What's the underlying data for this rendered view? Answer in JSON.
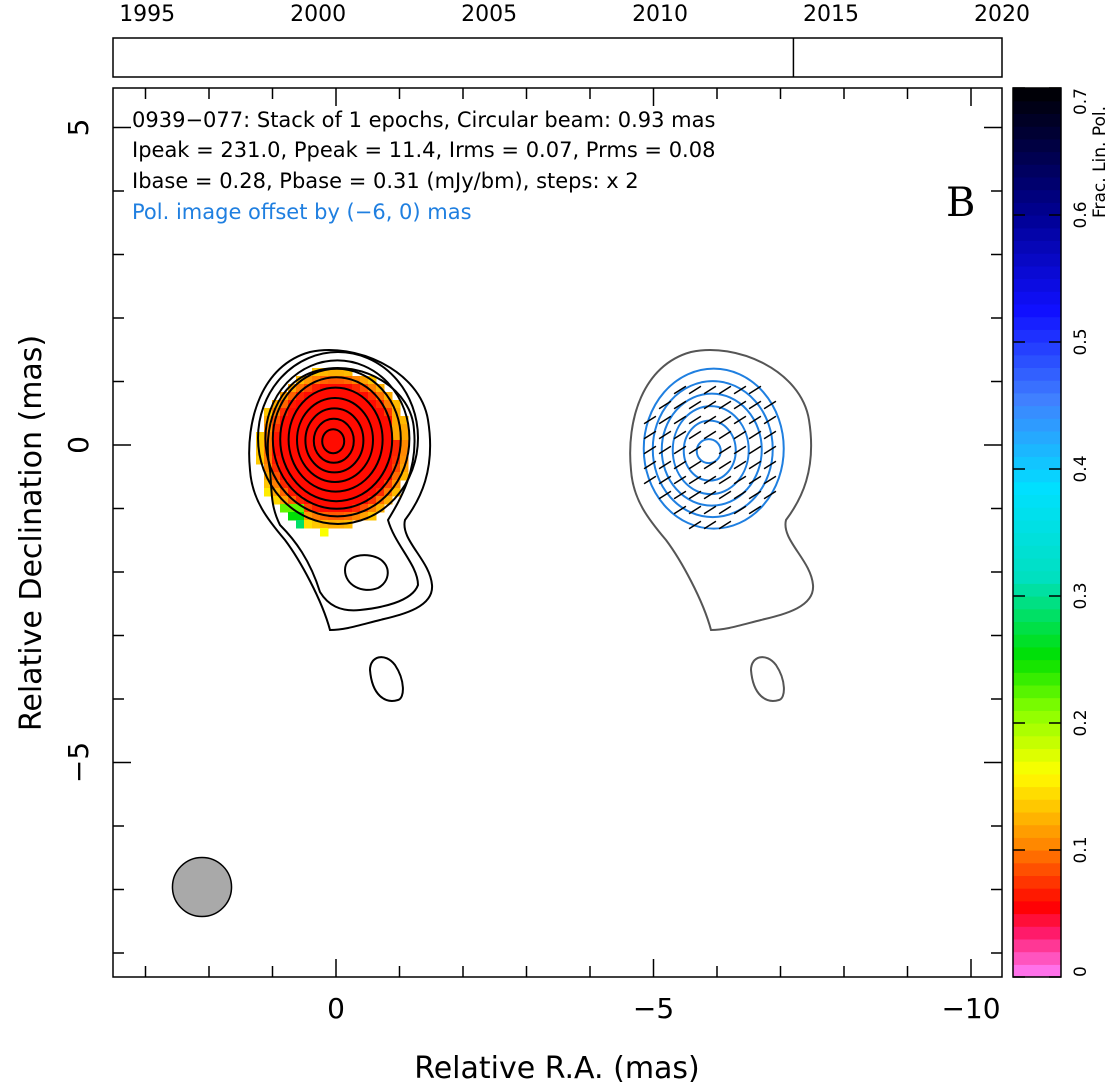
{
  "chart_data": {
    "type": "contour",
    "timeline": {
      "ticks": [
        "1995",
        "2000",
        "2005",
        "2010",
        "2015",
        "2020"
      ],
      "range": [
        1994,
        2020
      ],
      "epochs": [
        2013.9
      ]
    },
    "annotation": {
      "line1": "0939−077: Stack of 1 epochs, Circular beam: 0.93 mas",
      "line2": "Ipeak = 231.0, Ppeak = 11.4, Irms = 0.07, Prms = 0.08",
      "line3": "Ibase = 0.28, Pbase = 0.31 (mJy/bm), steps: x 2",
      "offset_note": "Pol. image offset by (−6, 0) mas",
      "panel_label": "B"
    },
    "xlabel": "Relative R.A. (mas)",
    "ylabel": "Relative Declination (mas)",
    "xlim": [
      3.5,
      -10.5
    ],
    "ylim": [
      -8.4,
      5.6
    ],
    "x_ticks": [
      "0",
      "−5",
      "−10"
    ],
    "y_ticks": [
      "−5",
      "0",
      "5"
    ],
    "beam_diameter_mas": 0.93,
    "polarization_offset_mas": [
      -6,
      0
    ],
    "colorbar": {
      "label": "Frac. Lin. Pol.",
      "range": [
        0,
        0.7
      ],
      "ticks": [
        "0",
        "0.1",
        "0.2",
        "0.3",
        "0.4",
        "0.5",
        "0.6",
        "0.7"
      ]
    },
    "colors": {
      "total_intensity_contours": "#000000",
      "polarization_contours": "#1f7fe0",
      "base_contour_gray": "#555555",
      "evpa_ticks": "#000000",
      "beam_fill": "#a9a9a9"
    }
  }
}
